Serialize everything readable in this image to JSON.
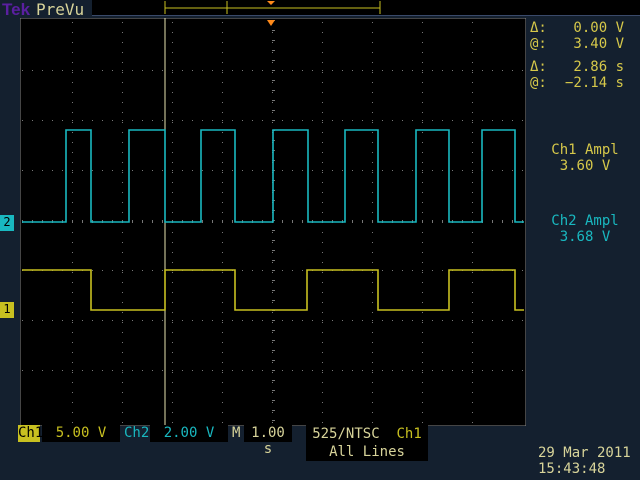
{
  "header": {
    "logo": "Tek",
    "mode": "PreVu"
  },
  "readouts": {
    "cursor1_delta_label": "Δ:",
    "cursor1_delta": "0.00 V",
    "cursor1_at_label": "@:",
    "cursor1_at": "3.40 V",
    "cursor2_delta_label": "Δ:",
    "cursor2_delta": "2.86 s",
    "cursor2_at_label": "@:",
    "cursor2_at": "−2.14 s",
    "meas1_label": "Ch1 Ampl",
    "meas1_value": "3.60 V",
    "meas2_label": "Ch2 Ampl",
    "meas2_value": "3.68 V"
  },
  "footer": {
    "ch1_label": "Ch1",
    "ch1_scale": "5.00 V",
    "ch2_label": "Ch2",
    "ch2_scale": "2.00 V",
    "m_label": "M",
    "timebase": "1.00 s",
    "trigger_line1": "525/NTSC",
    "trigger_source": "Ch1",
    "trigger_line2": "All Lines",
    "date": "29 Mar 2011",
    "time": "15:43:48"
  },
  "markers": {
    "ch1": "1",
    "ch2": "2"
  },
  "colors": {
    "ch1": "#c8c020",
    "ch2": "#19b8c0",
    "trigger": "#ff8a1a"
  }
}
